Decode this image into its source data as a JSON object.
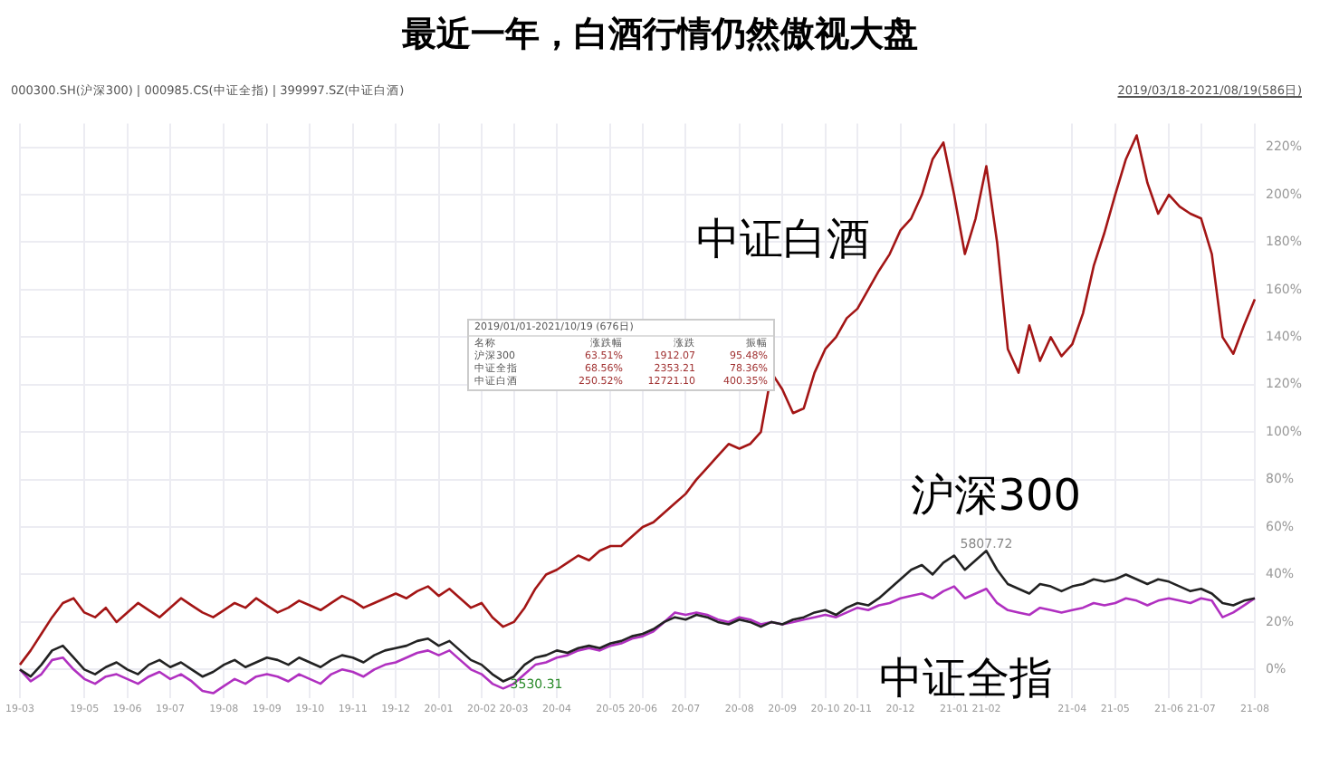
{
  "chart_data": {
    "type": "line",
    "title": "最近一年，白酒行情仍然傲视大盘",
    "categories": [
      "19-03",
      null,
      null,
      null,
      null,
      null,
      "19-05",
      null,
      null,
      null,
      "19-06",
      null,
      null,
      null,
      "19-07",
      null,
      null,
      null,
      null,
      "19-08",
      null,
      null,
      null,
      "19-09",
      null,
      null,
      null,
      "19-10",
      null,
      null,
      null,
      "19-11",
      null,
      null,
      null,
      "19-12",
      null,
      null,
      null,
      "20-01",
      null,
      null,
      null,
      "20-02",
      null,
      null,
      "20-03",
      null,
      null,
      null,
      "20-04",
      null,
      null,
      null,
      null,
      "20-05",
      null,
      null,
      "20-06",
      null,
      null,
      null,
      "20-07",
      null,
      null,
      null,
      null,
      "20-08",
      null,
      null,
      null,
      "20-09",
      null,
      null,
      null,
      "20-10",
      null,
      null,
      "20-11",
      null,
      null,
      null,
      "20-12",
      null,
      null,
      null,
      null,
      "21-01",
      null,
      null,
      "21-02",
      null,
      null,
      null,
      null,
      null,
      null,
      null,
      "21-04",
      null,
      null,
      null,
      "21-05",
      null,
      null,
      null,
      null,
      "21-06",
      null,
      null,
      "21-07",
      null,
      null,
      null,
      null,
      "21-08"
    ],
    "series": [
      {
        "name": "中证白酒",
        "color": "#a31515",
        "values": [
          2,
          8,
          15,
          22,
          28,
          30,
          24,
          22,
          26,
          20,
          24,
          28,
          25,
          22,
          26,
          30,
          27,
          24,
          22,
          25,
          28,
          26,
          30,
          27,
          24,
          26,
          29,
          27,
          25,
          28,
          31,
          29,
          26,
          28,
          30,
          32,
          30,
          33,
          35,
          31,
          34,
          30,
          26,
          28,
          22,
          18,
          20,
          26,
          34,
          40,
          42,
          45,
          48,
          46,
          50,
          52,
          52,
          56,
          60,
          62,
          66,
          70,
          74,
          80,
          85,
          90,
          95,
          93,
          95,
          100,
          125,
          118,
          108,
          110,
          125,
          135,
          140,
          148,
          152,
          160,
          168,
          175,
          185,
          190,
          200,
          215,
          222,
          200,
          175,
          190,
          212,
          180,
          135,
          125,
          145,
          130,
          140,
          132,
          137,
          150,
          170,
          184,
          200,
          215,
          225,
          205,
          192,
          200,
          195,
          192,
          190,
          175,
          140,
          133,
          145,
          156
        ]
      },
      {
        "name": "沪深300",
        "color": "#222222",
        "values": [
          0,
          -3,
          2,
          8,
          10,
          5,
          0,
          -2,
          1,
          3,
          0,
          -2,
          2,
          4,
          1,
          3,
          0,
          -3,
          -1,
          2,
          4,
          1,
          3,
          5,
          4,
          2,
          5,
          3,
          1,
          4,
          6,
          5,
          3,
          6,
          8,
          9,
          10,
          12,
          13,
          10,
          12,
          8,
          4,
          2,
          -2,
          -5,
          -3,
          2,
          5,
          6,
          8,
          7,
          9,
          10,
          9,
          11,
          12,
          14,
          15,
          17,
          20,
          22,
          21,
          23,
          22,
          20,
          19,
          21,
          20,
          18,
          20,
          19,
          21,
          22,
          24,
          25,
          23,
          26,
          28,
          27,
          30,
          34,
          38,
          42,
          44,
          40,
          45,
          48,
          42,
          46,
          50,
          42,
          36,
          34,
          32,
          36,
          35,
          33,
          35,
          36,
          38,
          37,
          38,
          40,
          38,
          36,
          38,
          37,
          35,
          33,
          34,
          32,
          28,
          27,
          29,
          30
        ]
      },
      {
        "name": "中证全指",
        "color": "#b030c0",
        "values": [
          0,
          -5,
          -2,
          4,
          5,
          0,
          -4,
          -6,
          -3,
          -2,
          -4,
          -6,
          -3,
          -1,
          -4,
          -2,
          -5,
          -9,
          -10,
          -7,
          -4,
          -6,
          -3,
          -2,
          -3,
          -5,
          -2,
          -4,
          -6,
          -2,
          0,
          -1,
          -3,
          0,
          2,
          3,
          5,
          7,
          8,
          6,
          8,
          4,
          0,
          -2,
          -6,
          -8,
          -6,
          -2,
          2,
          3,
          5,
          6,
          8,
          9,
          8,
          10,
          11,
          13,
          14,
          16,
          20,
          24,
          23,
          24,
          23,
          21,
          20,
          22,
          21,
          19,
          20,
          19,
          20,
          21,
          22,
          23,
          22,
          24,
          26,
          25,
          27,
          28,
          30,
          31,
          32,
          30,
          33,
          35,
          30,
          32,
          34,
          28,
          25,
          24,
          23,
          26,
          25,
          24,
          25,
          26,
          28,
          27,
          28,
          30,
          29,
          27,
          29,
          30,
          29,
          28,
          30,
          29,
          22,
          24,
          27,
          30
        ]
      }
    ],
    "ylim": [
      -12,
      230
    ],
    "yticks": [
      {
        "value": 0,
        "label": "0%"
      },
      {
        "value": 20,
        "label": "20%"
      },
      {
        "value": 40,
        "label": "40%"
      },
      {
        "value": 60,
        "label": "60%"
      },
      {
        "value": 80,
        "label": "80%"
      },
      {
        "value": 100,
        "label": "100%"
      },
      {
        "value": 120,
        "label": "120%"
      },
      {
        "value": 140,
        "label": "140%"
      },
      {
        "value": 160,
        "label": "160%"
      },
      {
        "value": 180,
        "label": "180%"
      },
      {
        "value": 200,
        "label": "200%"
      },
      {
        "value": 220,
        "label": "220%"
      }
    ],
    "grid": true,
    "annotations": [
      "000300.SH(沪深300) | 000985.CS(中证全指) | 399997.SZ(中证白酒)",
      "2019/03/18-2021/08/19(586日)",
      "2019/01/01-2021/10/19 (676日)",
      "名称",
      "涨跌幅",
      "涨跌",
      "振幅",
      "沪深300",
      "63.51%",
      "1912.07",
      "95.48%",
      "中证全指",
      "68.56%",
      "2353.21",
      "78.36%",
      "中证白酒",
      "250.52%",
      "12721.10",
      "400.35%",
      {
        "text": "5807.72",
        "x": "21-02",
        "y": 50
      },
      {
        "text": "3530.31",
        "x": "20-03",
        "y": -3
      }
    ]
  }
}
